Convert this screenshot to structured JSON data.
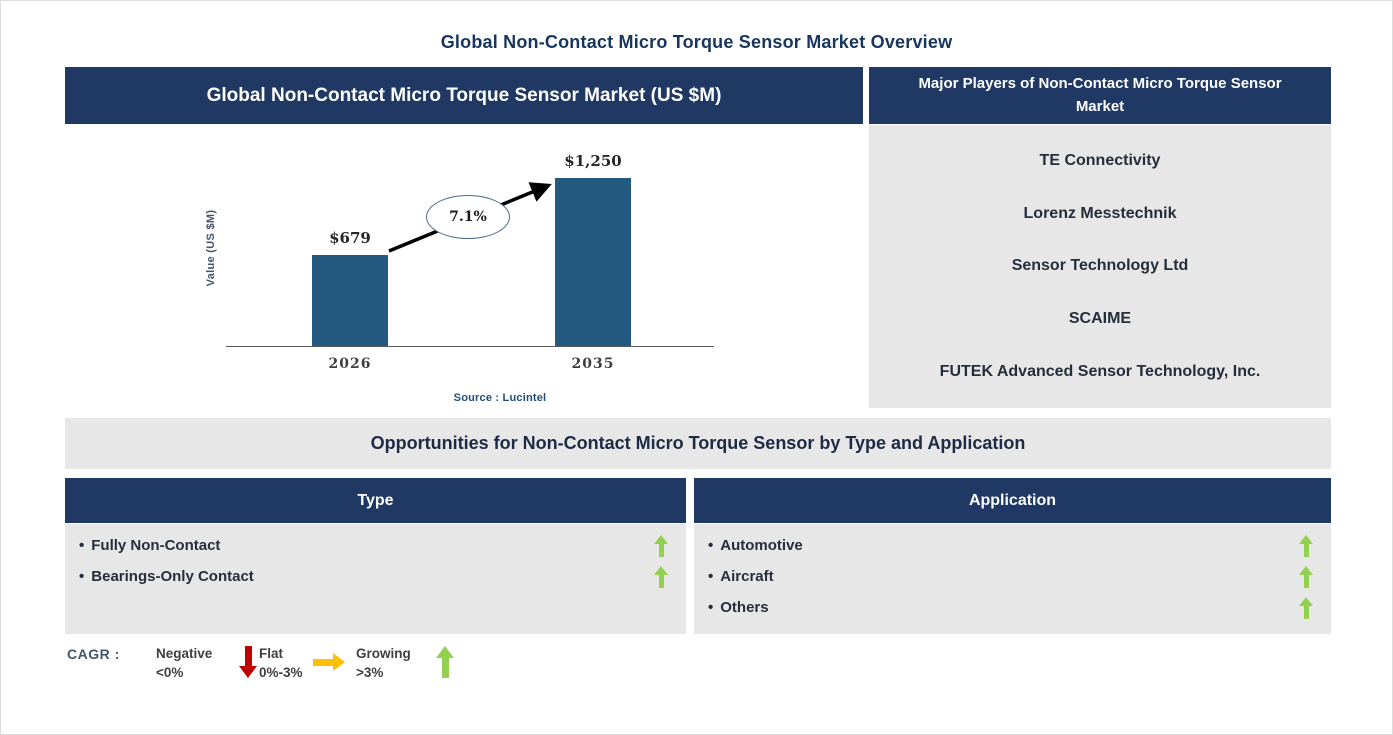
{
  "page": {
    "title": "Global Non-Contact Micro Torque Sensor Market Overview"
  },
  "market_panel": {
    "header": "Global Non-Contact Micro Torque Sensor Market (US $M)"
  },
  "chart_data": {
    "type": "bar",
    "title": "Global Non-Contact Micro Torque Sensor Market (US $M)",
    "ylabel": "Value (US $M)",
    "categories": [
      "2026",
      "2035"
    ],
    "values": [
      679,
      1250
    ],
    "value_labels": [
      "$679",
      "$1,250"
    ],
    "growth_annotation": "7.1%",
    "source": "Source : Lucintel",
    "ylim": [
      0,
      1250
    ],
    "grid": "off",
    "bar_color": "#245980"
  },
  "players_panel": {
    "header": "Major Players of Non-Contact Micro Torque Sensor Market",
    "companies": [
      "TE Connectivity",
      "Lorenz Messtechnik",
      "Sensor Technology Ltd",
      "SCAIME",
      "FUTEK Advanced Sensor Technology, Inc."
    ]
  },
  "opportunities": {
    "band_title": "Opportunities for Non-Contact Micro Torque Sensor by Type and Application",
    "bullet": "•",
    "type_column": {
      "header": "Type",
      "items": [
        {
          "label": "Fully Non-Contact",
          "trend": "growing"
        },
        {
          "label": "Bearings-Only Contact",
          "trend": "growing"
        }
      ]
    },
    "application_column": {
      "header": "Application",
      "items": [
        {
          "label": "Automotive",
          "trend": "growing"
        },
        {
          "label": "Aircraft",
          "trend": "growing"
        },
        {
          "label": "Others",
          "trend": "growing"
        }
      ]
    }
  },
  "legend": {
    "title": "CAGR :",
    "items": [
      {
        "label": "Negative",
        "range": "<0%",
        "direction": "down",
        "color": "#C00000"
      },
      {
        "label": "Flat",
        "range": "0%-3%",
        "direction": "right",
        "color": "#FFC000"
      },
      {
        "label": "Growing",
        "range": ">3%",
        "direction": "up",
        "color": "#92D050"
      }
    ]
  },
  "colors": {
    "navy_header": "#1F3864",
    "panel_gray": "#E7E7E7",
    "bar_blue": "#245980",
    "growing_green": "#92D050",
    "negative_red": "#C00000",
    "flat_amber": "#FFC000",
    "source_blue": "#1F4E79"
  }
}
